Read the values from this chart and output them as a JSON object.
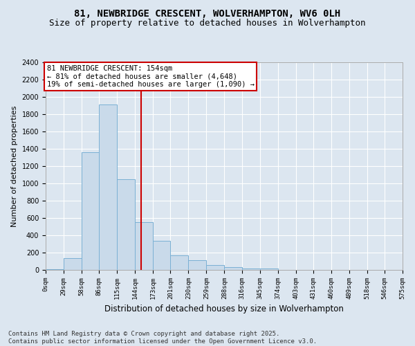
{
  "title": "81, NEWBRIDGE CRESCENT, WOLVERHAMPTON, WV6 0LH",
  "subtitle": "Size of property relative to detached houses in Wolverhampton",
  "xlabel": "Distribution of detached houses by size in Wolverhampton",
  "ylabel": "Number of detached properties",
  "bar_color": "#c9daea",
  "bar_edge_color": "#7ab0d4",
  "background_color": "#dce6f0",
  "grid_color": "#ffffff",
  "vline_x": 154,
  "vline_color": "#cc0000",
  "annotation_text": "81 NEWBRIDGE CRESCENT: 154sqm\n← 81% of detached houses are smaller (4,648)\n19% of semi-detached houses are larger (1,090) →",
  "annotation_box_color": "#ffffff",
  "annotation_box_edge": "#cc0000",
  "bin_edges": [
    0,
    29,
    58,
    86,
    115,
    144,
    173,
    201,
    230,
    259,
    288,
    316,
    345,
    374,
    403,
    431,
    460,
    489,
    518,
    546,
    575
  ],
  "bar_heights": [
    5,
    140,
    1360,
    1910,
    1050,
    555,
    340,
    170,
    115,
    60,
    30,
    20,
    15,
    3,
    1,
    0,
    1,
    0,
    0,
    0
  ],
  "tick_labels": [
    "0sqm",
    "29sqm",
    "58sqm",
    "86sqm",
    "115sqm",
    "144sqm",
    "173sqm",
    "201sqm",
    "230sqm",
    "259sqm",
    "288sqm",
    "316sqm",
    "345sqm",
    "374sqm",
    "403sqm",
    "431sqm",
    "460sqm",
    "489sqm",
    "518sqm",
    "546sqm",
    "575sqm"
  ],
  "ylim": [
    0,
    2400
  ],
  "yticks": [
    0,
    200,
    400,
    600,
    800,
    1000,
    1200,
    1400,
    1600,
    1800,
    2000,
    2200,
    2400
  ],
  "footer": "Contains HM Land Registry data © Crown copyright and database right 2025.\nContains public sector information licensed under the Open Government Licence v3.0.",
  "title_fontsize": 10,
  "subtitle_fontsize": 9,
  "xlabel_fontsize": 8.5,
  "ylabel_fontsize": 8,
  "tick_fontsize": 6.5,
  "footer_fontsize": 6.5,
  "annotation_fontsize": 7.5
}
